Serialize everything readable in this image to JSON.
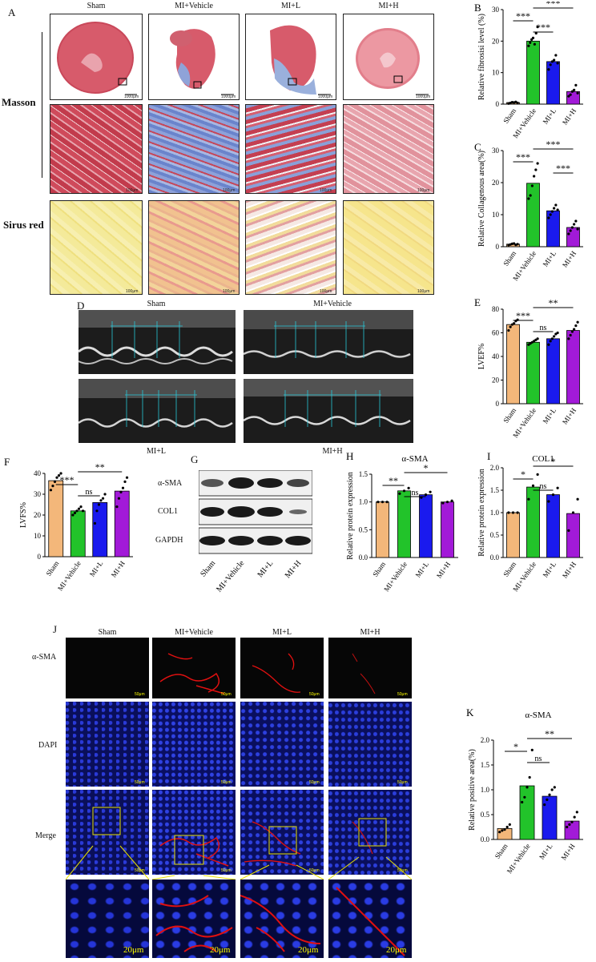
{
  "panels": {
    "A": {
      "label": "A",
      "columns": [
        "Sham",
        "MI+Vehicle",
        "MI+L",
        "MI+H"
      ],
      "rows": [
        "Masson",
        "Sirus red"
      ],
      "scale_whole": "1000μm",
      "scale_zoom": "100μm"
    },
    "D": {
      "label": "D",
      "groups": [
        "Sham",
        "MI+Vehicle",
        "MI+L",
        "MI+H"
      ]
    },
    "G": {
      "label": "G",
      "bands": [
        "α-SMA",
        "COL1",
        "GAPDH"
      ],
      "lanes": [
        "Sham",
        "MI+Vehicle",
        "MI+L",
        "MI+H"
      ]
    },
    "J": {
      "label": "J",
      "columns": [
        "Sham",
        "MI+Vehicle",
        "MI+L",
        "MI+H"
      ],
      "rows": [
        "α-SMA",
        "DAPI",
        "Merge"
      ],
      "scale_large": "50μm",
      "scale_zoom": "20μm"
    }
  },
  "colors": {
    "sham": "#f3b77a",
    "vehicle": "#22c32a",
    "low": "#1a1aee",
    "high": "#a21ad8"
  },
  "chart_data": [
    {
      "id": "B",
      "type": "bar",
      "label": "B",
      "categories": [
        "Sham",
        "MI+Vehicle",
        "MI+L",
        "MI+H"
      ],
      "values": [
        0.5,
        20,
        13.5,
        4
      ],
      "ylabel": "Relative fibrosisi level (%)",
      "ylim": [
        0,
        30
      ],
      "yticks": [
        "0",
        "10",
        "20",
        "30"
      ],
      "points": [
        [
          0.2,
          0.4,
          0.6,
          0.5,
          0.7,
          0.4
        ],
        [
          18.5,
          19.5,
          20.5,
          21,
          19,
          22.5,
          24.5
        ],
        [
          11,
          12.5,
          13.5,
          14,
          15.5,
          13
        ],
        [
          2.5,
          3,
          4,
          4.5,
          6,
          3.5
        ]
      ],
      "significance": [
        {
          "from": 0,
          "to": 1,
          "text": "***"
        },
        {
          "from": 1,
          "to": 2,
          "text": "***"
        },
        {
          "from": 1,
          "to": 3,
          "text": "***"
        }
      ]
    },
    {
      "id": "C",
      "type": "bar",
      "label": "C",
      "categories": [
        "Sham",
        "MI+Vehicle",
        "MI+L",
        "MI+H"
      ],
      "values": [
        0.8,
        19.8,
        11.2,
        6
      ],
      "ylabel": "Relative Collagenous area(%)",
      "ylim": [
        0,
        30
      ],
      "yticks": [
        "0",
        "10",
        "20",
        "30"
      ],
      "points": [
        [
          0.5,
          0.7,
          0.9,
          1,
          0.6,
          0.8
        ],
        [
          15,
          16,
          19,
          22,
          24,
          26
        ],
        [
          9,
          10,
          11,
          12,
          13,
          11.5
        ],
        [
          4,
          5,
          6,
          7,
          8,
          5.5
        ]
      ],
      "significance": [
        {
          "from": 0,
          "to": 1,
          "text": "***"
        },
        {
          "from": 2,
          "to": 3,
          "text": "***"
        },
        {
          "from": 1,
          "to": 3,
          "text": "***"
        }
      ]
    },
    {
      "id": "E",
      "type": "bar",
      "label": "E",
      "categories": [
        "Sham",
        "MI+Vehicle",
        "MI+L",
        "MI+H"
      ],
      "values": [
        67,
        52,
        55,
        62
      ],
      "ylabel": "LVEF%",
      "ylim": [
        0,
        80
      ],
      "yticks": [
        "0",
        "20",
        "40",
        "60",
        "80"
      ],
      "points": [
        [
          62,
          65,
          67,
          68,
          70,
          71
        ],
        [
          50,
          51,
          52,
          53,
          54,
          55
        ],
        [
          50,
          53,
          55,
          57,
          59,
          60
        ],
        [
          55,
          58,
          61,
          63,
          66,
          69
        ]
      ],
      "significance": [
        {
          "from": 0,
          "to": 1,
          "text": "***"
        },
        {
          "from": 1,
          "to": 2,
          "text": "ns"
        },
        {
          "from": 1,
          "to": 3,
          "text": "**"
        }
      ]
    },
    {
      "id": "F",
      "type": "bar",
      "label": "F",
      "categories": [
        "Sham",
        "MI+Vehicle",
        "MI+L",
        "MI+H"
      ],
      "values": [
        36.5,
        22,
        26,
        31.5
      ],
      "ylabel": "LVFS%",
      "ylim": [
        0,
        40
      ],
      "yticks": [
        "0",
        "10",
        "20",
        "30",
        "40"
      ],
      "points": [
        [
          32,
          34,
          36,
          38,
          39,
          40
        ],
        [
          20,
          21,
          22,
          23,
          24,
          22
        ],
        [
          16,
          22,
          25,
          27,
          28,
          30
        ],
        [
          24,
          28,
          31,
          33,
          36,
          38
        ]
      ],
      "significance": [
        {
          "from": 0,
          "to": 1,
          "text": "***"
        },
        {
          "from": 1,
          "to": 2,
          "text": "ns"
        },
        {
          "from": 1,
          "to": 3,
          "text": "**"
        }
      ]
    },
    {
      "id": "H",
      "type": "bar",
      "label": "H",
      "title": "α-SMA",
      "categories": [
        "Sham",
        "MI+Vehicle",
        "MI+L",
        "MI+H"
      ],
      "values": [
        1.0,
        1.2,
        1.13,
        1.0
      ],
      "ylabel": "Relative protein expression",
      "ylim": [
        0,
        1.5
      ],
      "yticks": [
        "0.0",
        "0.5",
        "1.0",
        "1.5"
      ],
      "points": [
        [
          1,
          1,
          1
        ],
        [
          1.15,
          1.2,
          1.25
        ],
        [
          1.08,
          1.13,
          1.18
        ],
        [
          0.98,
          1,
          1.02
        ]
      ],
      "significance": [
        {
          "from": 0,
          "to": 1,
          "text": "**"
        },
        {
          "from": 1,
          "to": 2,
          "text": "ns"
        },
        {
          "from": 1,
          "to": 3,
          "text": "*"
        }
      ]
    },
    {
      "id": "I",
      "type": "bar",
      "label": "I",
      "title": "COL1",
      "categories": [
        "Sham",
        "MI+Vehicle",
        "MI+L",
        "MI+H"
      ],
      "values": [
        1.0,
        1.57,
        1.4,
        0.98
      ],
      "ylabel": "Relative protein expression",
      "ylim": [
        0,
        2.0
      ],
      "yticks": [
        "0.0",
        "0.5",
        "1.0",
        "1.5",
        "2.0"
      ],
      "points": [
        [
          1,
          1,
          1
        ],
        [
          1.3,
          1.6,
          1.85
        ],
        [
          1.25,
          1.4,
          1.55
        ],
        [
          0.6,
          1,
          1.3
        ]
      ],
      "significance": [
        {
          "from": 0,
          "to": 1,
          "text": "*"
        },
        {
          "from": 1,
          "to": 2,
          "text": "ns"
        },
        {
          "from": 1,
          "to": 3,
          "text": "*"
        }
      ]
    },
    {
      "id": "K",
      "type": "bar",
      "label": "K",
      "title": "α-SMA",
      "categories": [
        "Sham",
        "MI+Vehicle",
        "MI+L",
        "MI+H"
      ],
      "values": [
        0.22,
        1.08,
        0.87,
        0.37
      ],
      "ylabel": "Relative positive area(%)",
      "ylim": [
        0,
        2.0
      ],
      "yticks": [
        "0.0",
        "0.5",
        "1.0",
        "1.5",
        "2.0"
      ],
      "points": [
        [
          0.15,
          0.18,
          0.2,
          0.25,
          0.3
        ],
        [
          0.75,
          0.85,
          1.05,
          1.25,
          1.8
        ],
        [
          0.7,
          0.8,
          0.9,
          1,
          1.05
        ],
        [
          0.25,
          0.3,
          0.35,
          0.45,
          0.55
        ]
      ],
      "significance": [
        {
          "from": 0,
          "to": 1,
          "text": "*"
        },
        {
          "from": 1,
          "to": 2,
          "text": "ns"
        },
        {
          "from": 1,
          "to": 3,
          "text": "**"
        }
      ]
    }
  ]
}
